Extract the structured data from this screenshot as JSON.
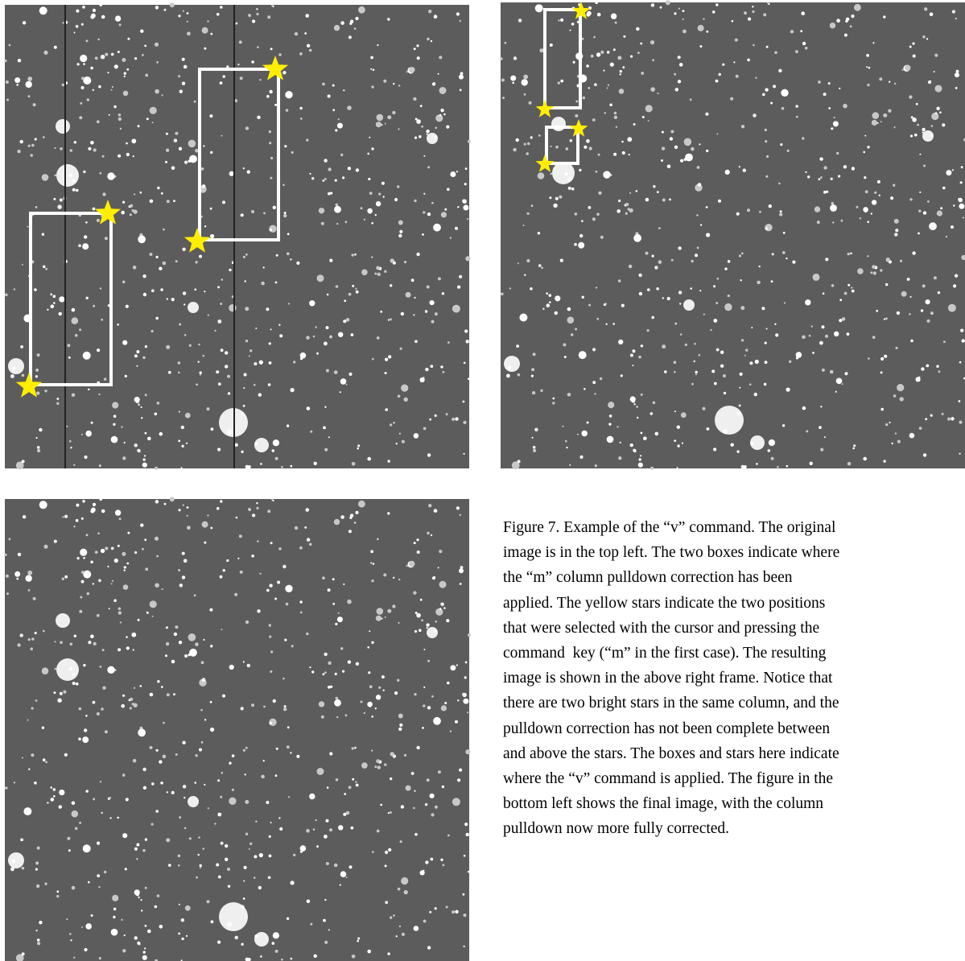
{
  "caption": {
    "lines": [
      "Figure 7. Example of the “v” command. The original",
      "image is in the top left. The two boxes indicate where",
      "the “m” column pulldown correction has been",
      "applied. The yellow stars indicate the two positions",
      "that were selected with the cursor and pressing the",
      "command  key (“m” in the first case). The resulting",
      "image is shown in the above right frame. Notice that",
      "there are two bright stars in the same column, and the",
      "pulldown correction has not been complete between",
      "and above the stars. The boxes and stars here indicate",
      "where the “v” command is applied. The figure in the",
      "bottom left shows the final image, with the column",
      "pulldown now more fully corrected."
    ]
  }
}
